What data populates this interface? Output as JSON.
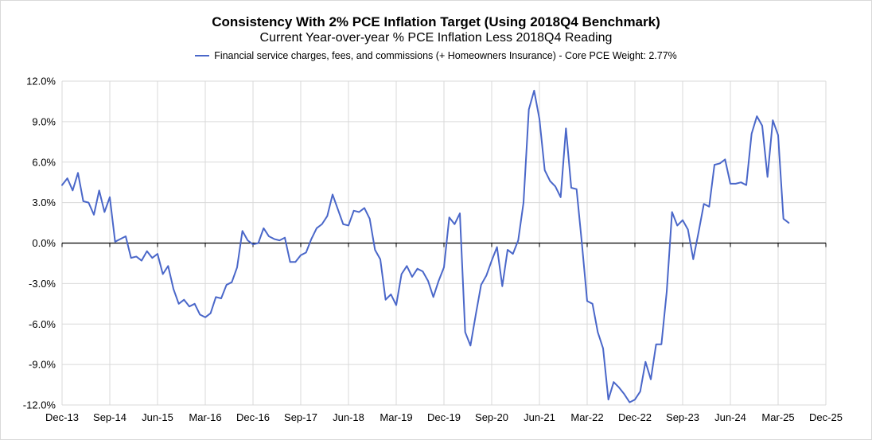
{
  "chart_data": {
    "type": "line",
    "title": "Consistency With 2% PCE Inflation Target (Using 2018Q4 Benchmark)",
    "subtitle": "Current Year-over-year % PCE Inflation Less 2018Q4 Reading",
    "xlabel": "",
    "ylabel": "",
    "ylim": [
      -12,
      12
    ],
    "yticks": [
      12,
      9,
      6,
      3,
      0,
      -3,
      -6,
      -9,
      -12
    ],
    "ytick_labels": [
      "12.0%",
      "9.0%",
      "6.0%",
      "3.0%",
      "0.0%",
      "-3.0%",
      "-6.0%",
      "-9.0%",
      "-12.0%"
    ],
    "xticks": [
      "Dec-13",
      "Sep-14",
      "Jun-15",
      "Mar-16",
      "Dec-16",
      "Sep-17",
      "Jun-18",
      "Mar-19",
      "Dec-19",
      "Sep-20",
      "Jun-21",
      "Mar-22",
      "Dec-22",
      "Sep-23",
      "Jun-24",
      "Mar-25",
      "Dec-25"
    ],
    "x_start": "Dec-13",
    "x_end": "Dec-25",
    "grid": true,
    "legend_position": "top-center",
    "line_color": "#4a67c9",
    "series": [
      {
        "name": "Financial service charges, fees, and commissions (+ Homeowners Insurance) - Core PCE Weight: 2.77%",
        "start": "Dec-13",
        "values": [
          4.3,
          4.8,
          3.9,
          5.2,
          3.1,
          3.0,
          2.1,
          3.9,
          2.3,
          3.4,
          0.1,
          0.3,
          0.5,
          -1.1,
          -1.0,
          -1.3,
          -0.6,
          -1.1,
          -0.8,
          -2.3,
          -1.7,
          -3.4,
          -4.5,
          -4.2,
          -4.7,
          -4.5,
          -5.3,
          -5.5,
          -5.2,
          -4.0,
          -4.1,
          -3.1,
          -2.9,
          -1.8,
          0.9,
          0.2,
          -0.1,
          0.0,
          1.1,
          0.5,
          0.3,
          0.2,
          0.4,
          -1.4,
          -1.4,
          -0.9,
          -0.7,
          0.3,
          1.1,
          1.4,
          2.0,
          3.6,
          2.5,
          1.4,
          1.3,
          2.4,
          2.3,
          2.6,
          1.8,
          -0.5,
          -1.2,
          -4.2,
          -3.8,
          -4.6,
          -2.3,
          -1.7,
          -2.5,
          -1.9,
          -2.1,
          -2.8,
          -4.0,
          -2.8,
          -1.8,
          1.9,
          1.4,
          2.2,
          -6.6,
          -7.6,
          -5.3,
          -3.1,
          -2.4,
          -1.3,
          -0.3,
          -3.2,
          -0.5,
          -0.8,
          0.2,
          3.0,
          9.9,
          11.3,
          9.2,
          5.4,
          4.6,
          4.2,
          3.4,
          8.5,
          4.1,
          4.0,
          0.0,
          -4.3,
          -4.5,
          -6.6,
          -7.8,
          -11.6,
          -10.3,
          -10.7,
          -11.2,
          -11.8,
          -11.6,
          -11.0,
          -8.8,
          -10.1,
          -7.5,
          -7.5,
          -3.6,
          2.3,
          1.3,
          1.7,
          1.0,
          -1.2,
          0.8,
          2.9,
          2.7,
          5.8,
          5.9,
          6.2,
          4.4,
          4.4,
          4.5,
          4.3,
          8.1,
          9.4,
          8.7,
          4.9,
          9.1,
          8.0,
          1.8,
          1.5
        ]
      }
    ]
  }
}
